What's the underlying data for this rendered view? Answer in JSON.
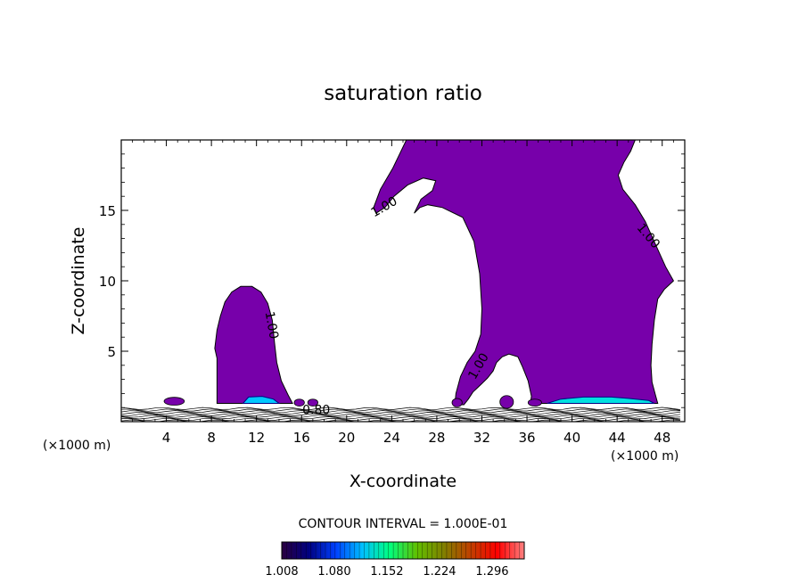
{
  "chart_data": {
    "type": "contour",
    "title": "saturation ratio",
    "xlabel": "X-coordinate",
    "ylabel": "Z-coordinate",
    "x_unit_label": "(×1000 m)",
    "x_unit_label_right": "(×1000 m)",
    "xlim": [
      0,
      50
    ],
    "ylim": [
      0,
      20
    ],
    "x_ticks": [
      4,
      8,
      12,
      16,
      20,
      24,
      28,
      32,
      36,
      40,
      44,
      48
    ],
    "y_ticks": [
      5,
      10,
      15
    ],
    "contour_interval_text": "CONTOUR INTERVAL = 1.000E-01",
    "fill_color": "#7700aa",
    "contour_labels": [
      {
        "text": "1.00",
        "x": 23.5,
        "z": 15.0,
        "angle": -30
      },
      {
        "text": "1.00",
        "x": 46.5,
        "z": 13.0,
        "angle": 50
      },
      {
        "text": "1.00",
        "x": 13.0,
        "z": 6.8,
        "angle": 80
      },
      {
        "text": "1.00",
        "x": 32.0,
        "z": 3.8,
        "angle": -60
      },
      {
        "text": "0.80",
        "x": 17.3,
        "z": 0.55,
        "angle": 0
      }
    ],
    "colorbar": {
      "min": 1.008,
      "max": 1.34,
      "tick_labels": [
        "1.008",
        "1.080",
        "1.152",
        "1.224",
        "1.296"
      ],
      "colors": [
        "#2a0040",
        "#000080",
        "#0040ff",
        "#00c0ff",
        "#00ff80",
        "#60c000",
        "#808000",
        "#c04000",
        "#ff0000",
        "#ff8080"
      ]
    }
  }
}
